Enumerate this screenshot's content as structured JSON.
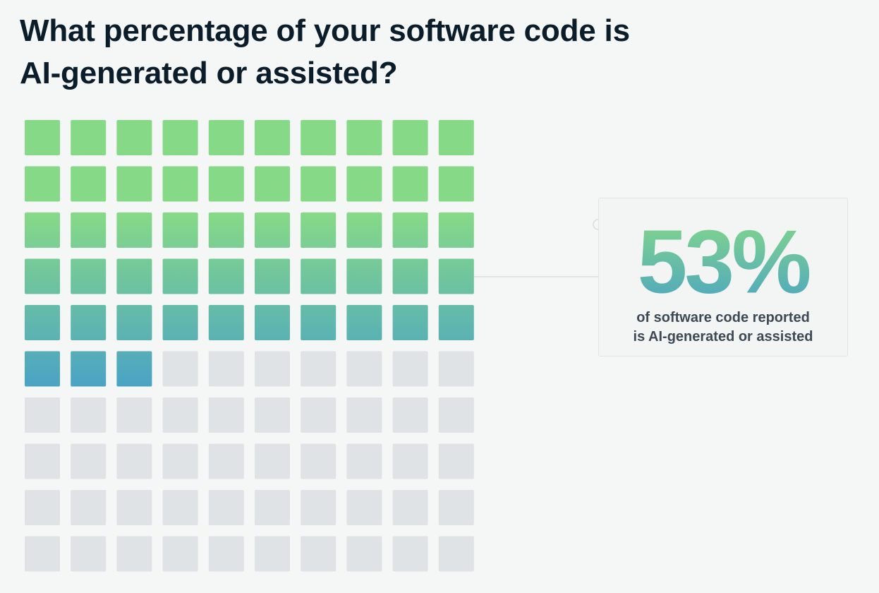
{
  "title_line1": "What percentage of your software code is",
  "title_line2": "AI-generated or assisted?",
  "chart_data": {
    "type": "waffle",
    "rows": 10,
    "columns": 10,
    "filled_cells": 53,
    "total_cells": 100,
    "value_percent": 53,
    "value_label": "53%",
    "caption_line1": "of software code reported",
    "caption_line2": "is AI-generated or assisted",
    "colors": {
      "gradient_top": "#86d987",
      "gradient_bottom": "#4aa3c4",
      "empty_cell": "#dfe3e6",
      "connector": "#d9dde0"
    }
  }
}
